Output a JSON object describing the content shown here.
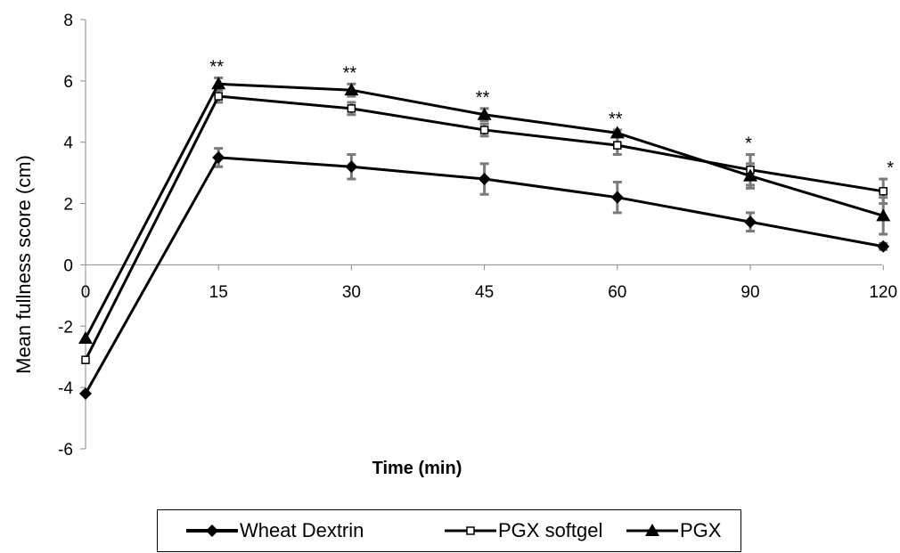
{
  "chart_data": {
    "type": "line",
    "xlabel": "Time (min)",
    "ylabel": "Mean fullness score (cm)",
    "categories": [
      "0",
      "15",
      "30",
      "45",
      "60",
      "90",
      "120"
    ],
    "ylim": [
      -6,
      8
    ],
    "yticks": [
      "8",
      "6",
      "4",
      "2",
      "0",
      "-2",
      "-4",
      "-6"
    ],
    "grid": false,
    "legend_position": "bottom",
    "series": [
      {
        "name": "Wheat Dextrin",
        "marker": "diamond",
        "values": [
          -4.2,
          3.5,
          3.2,
          2.8,
          2.2,
          1.4,
          0.6
        ],
        "error": [
          0,
          0.3,
          0.4,
          0.5,
          0.5,
          0.3,
          0.1
        ]
      },
      {
        "name": "PGX softgel",
        "marker": "square-open",
        "values": [
          -3.1,
          5.5,
          5.1,
          4.4,
          3.9,
          3.1,
          2.4
        ],
        "error": [
          0,
          0.2,
          0.2,
          0.2,
          0.3,
          0.5,
          0.4
        ]
      },
      {
        "name": "PGX",
        "marker": "triangle",
        "values": [
          -2.4,
          5.9,
          5.7,
          4.9,
          4.3,
          2.9,
          1.6
        ],
        "error": [
          0,
          0.2,
          0.2,
          0.2,
          0.1,
          0.4,
          0.6
        ]
      }
    ],
    "annotations": [
      {
        "x": "15",
        "text": "**"
      },
      {
        "x": "30",
        "text": "**"
      },
      {
        "x": "45",
        "text": "**"
      },
      {
        "x": "60",
        "text": "**"
      },
      {
        "x": "90",
        "text": "*"
      },
      {
        "x": "120",
        "text": "*"
      }
    ]
  }
}
